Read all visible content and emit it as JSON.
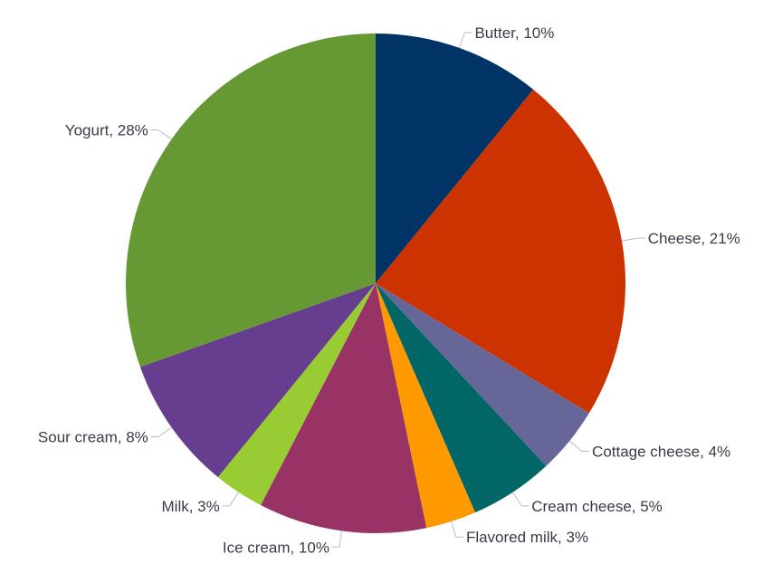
{
  "chart_data": {
    "type": "pie",
    "title": "",
    "start_angle_deg": 0,
    "direction": "clockwise",
    "legend": "none",
    "slices": [
      {
        "label": "Butter",
        "value": 10,
        "display": "Butter, 10%",
        "color": "#003366"
      },
      {
        "label": "Cheese",
        "value": 21,
        "display": "Cheese, 21%",
        "color": "#cc3300"
      },
      {
        "label": "Cottage cheese",
        "value": 4,
        "display": "Cottage cheese, 4%",
        "color": "#666699"
      },
      {
        "label": "Cream cheese",
        "value": 5,
        "display": "Cream cheese, 5%",
        "color": "#006666"
      },
      {
        "label": "Flavored milk",
        "value": 3,
        "display": "Flavored milk, 3%",
        "color": "#ff9900"
      },
      {
        "label": "Ice cream",
        "value": 10,
        "display": "Ice cream, 10%",
        "color": "#993366"
      },
      {
        "label": "Milk",
        "value": 3,
        "display": "Milk, 3%",
        "color": "#99cc33"
      },
      {
        "label": "Sour cream",
        "value": 8,
        "display": "Sour cream, 8%",
        "color": "#663d8f"
      },
      {
        "label": "Yogurt",
        "value": 28,
        "display": "Yogurt, 28%",
        "color": "#669933"
      }
    ]
  }
}
